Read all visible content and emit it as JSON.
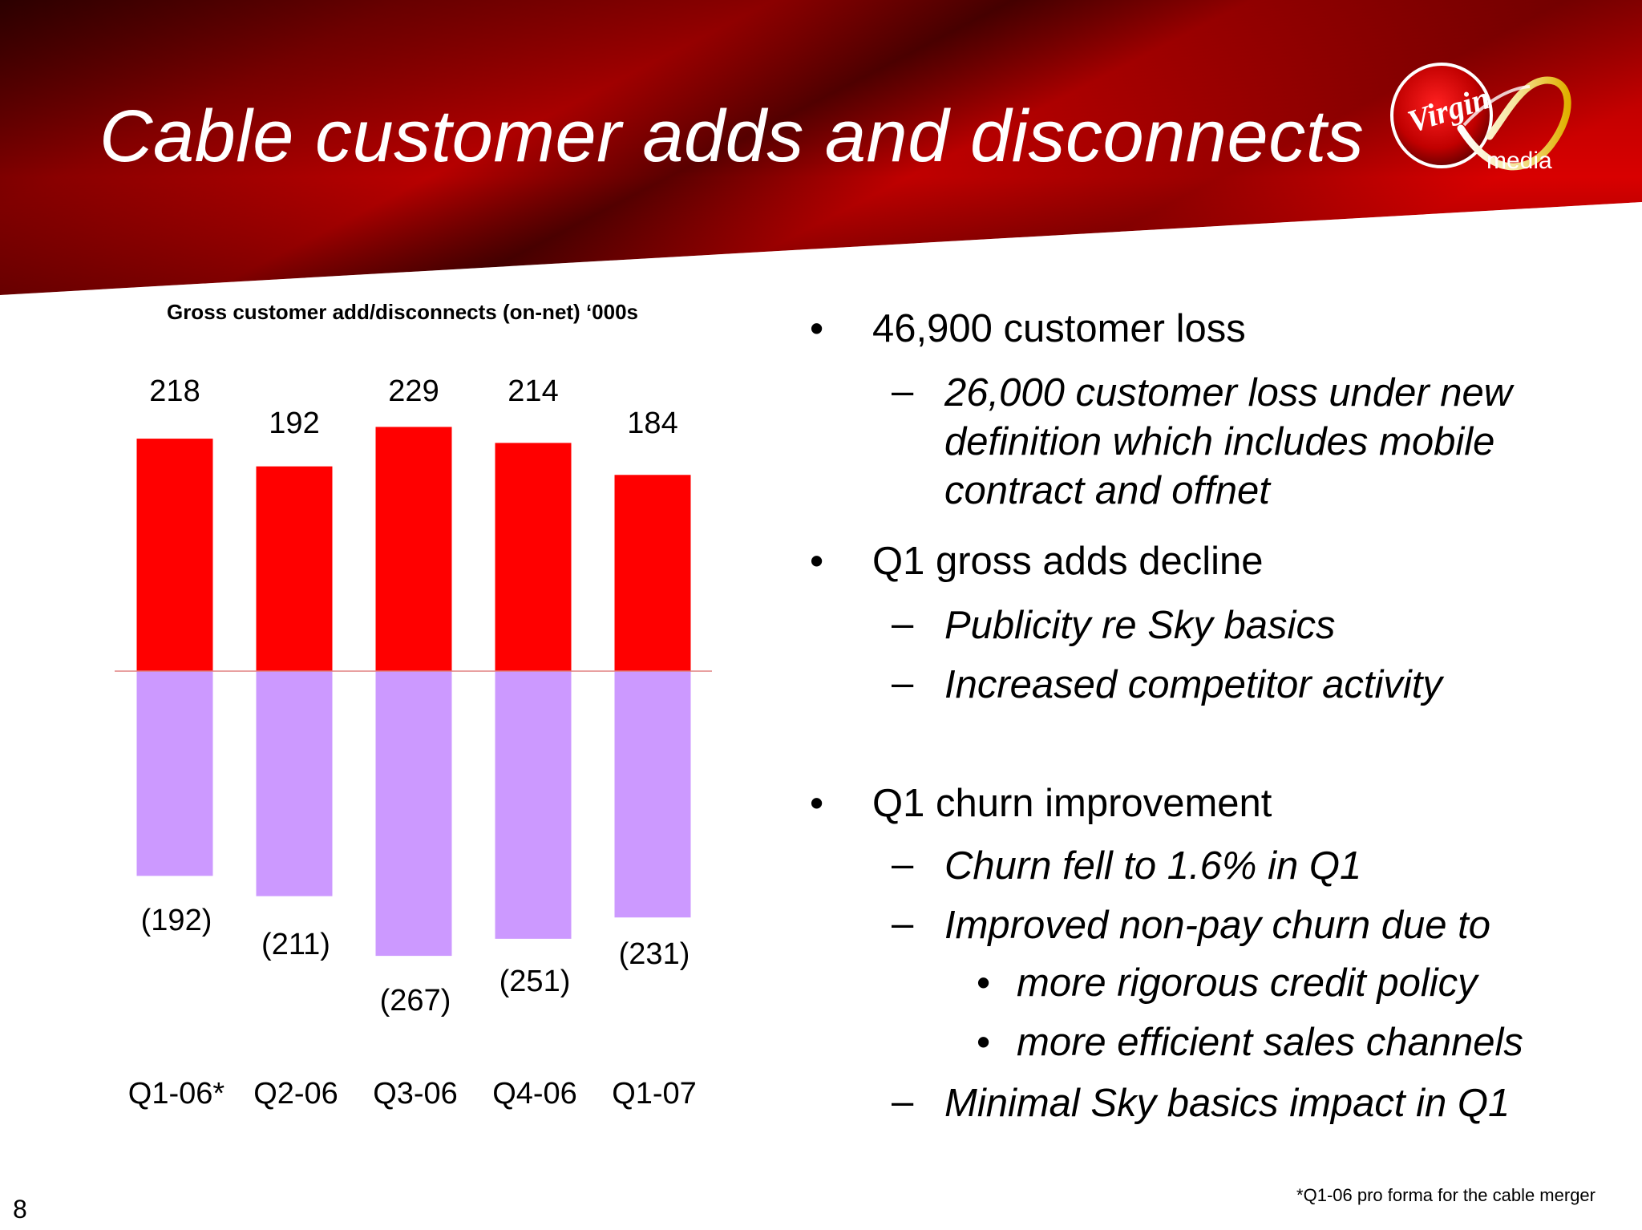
{
  "slide": {
    "title": "Cable customer adds and disconnects",
    "page_number": "8",
    "footnote": "*Q1-06  pro forma for the cable merger"
  },
  "logo": {
    "brand": "Virgin",
    "sub": "media",
    "icon": "virgin-media-logo"
  },
  "colors": {
    "adds": "#ff0000",
    "disconnects": "#cc99ff",
    "header_dark": "#2a0000",
    "header_red": "#c00000"
  },
  "chart_data": {
    "type": "bar",
    "title": "Gross customer add/disconnects (on-net) ‘000s",
    "categories": [
      "Q1-06*",
      "Q2-06",
      "Q3-06",
      "Q4-06",
      "Q1-07"
    ],
    "series": [
      {
        "values": [
          218,
          192,
          229,
          214,
          184
        ],
        "labels": [
          "218",
          "192",
          "229",
          "214",
          "184"
        ]
      },
      {
        "values": [
          -192,
          -211,
          -267,
          -251,
          -231
        ],
        "labels": [
          "(192)",
          "(211)",
          "(267)",
          "(251)",
          "(231)"
        ]
      }
    ],
    "xlabel": "",
    "ylabel": "",
    "grid": false,
    "legend": false
  },
  "bullets": {
    "b1": "46,900 customer loss",
    "b1_1": [
      "26,000 customer loss under new",
      "definition which includes mobile",
      "contract and offnet"
    ],
    "b2": "Q1 gross adds decline",
    "b2_1": "Publicity re Sky basics",
    "b2_2": "Increased competitor activity",
    "b3": "Q1 churn improvement",
    "b3_1": "Churn fell to 1.6% in Q1",
    "b3_2": "Improved non-pay churn due to",
    "b3_2_1": "more rigorous credit policy",
    "b3_2_2": "more efficient sales channels",
    "b3_3": "Minimal Sky basics impact in Q1",
    "marker_main": "•",
    "marker_dash": "–",
    "marker_sub": "•"
  }
}
